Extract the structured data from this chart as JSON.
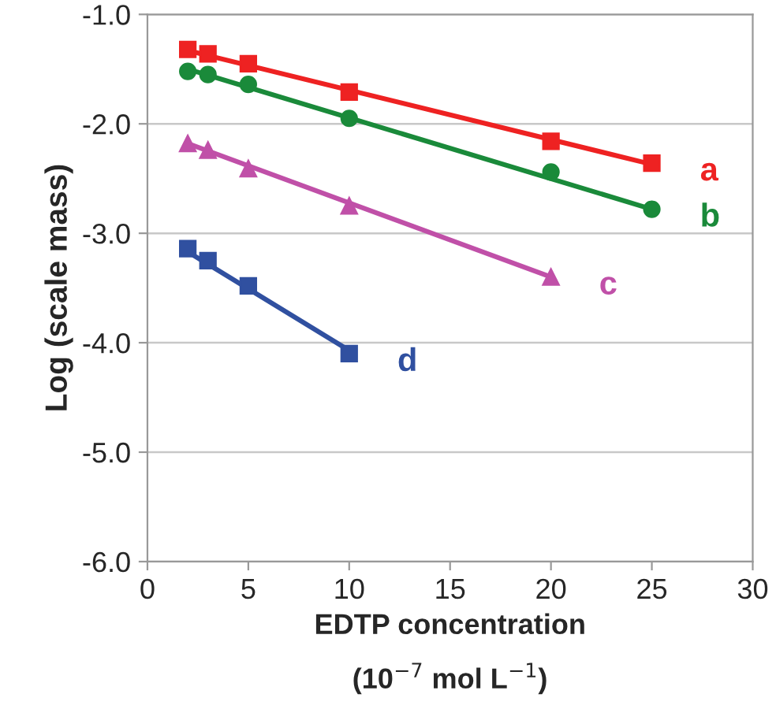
{
  "chart_data": {
    "type": "scatter",
    "xlabel": "EDTP concentration\n(10$^{−7}$ mol L$^{−1}$)",
    "ylabel": "Log (scale mass)",
    "xlim": [
      0,
      30
    ],
    "xticks": [
      0,
      5,
      10,
      15,
      20,
      25,
      30
    ],
    "ylim": [
      -6,
      -1
    ],
    "yticks": [
      {
        "value": -6,
        "label": "-6.0"
      },
      {
        "value": -5,
        "label": "-5.0"
      },
      {
        "value": -4,
        "label": "-4.0"
      },
      {
        "value": -3,
        "label": "-3.0"
      },
      {
        "value": -2,
        "label": "-2.0"
      },
      {
        "value": -1,
        "label": "-1.0"
      }
    ],
    "grid": "y",
    "legend": false,
    "series": [
      {
        "name": "a",
        "color": "#ee2222",
        "marker": "square",
        "x": [
          2,
          3,
          5,
          10,
          20,
          25
        ],
        "values": [
          -1.32,
          -1.36,
          -1.45,
          -1.71,
          -2.16,
          -2.36
        ]
      },
      {
        "name": "b",
        "color": "#1a8a3a",
        "marker": "circle",
        "x": [
          2,
          3,
          5,
          10,
          20,
          25
        ],
        "values": [
          -1.52,
          -1.55,
          -1.64,
          -1.95,
          -2.44,
          -2.78
        ]
      },
      {
        "name": "c",
        "color": "#c050a8",
        "marker": "triangle",
        "x": [
          2,
          3,
          5,
          10,
          20
        ],
        "values": [
          -2.18,
          -2.24,
          -2.41,
          -2.75,
          -3.4
        ]
      },
      {
        "name": "d",
        "color": "#3050a0",
        "marker": "square",
        "x": [
          2,
          3,
          5,
          10
        ],
        "values": [
          -3.14,
          -3.25,
          -3.48,
          -4.1
        ]
      },
      {
        "type": "line",
        "color": "#ee2222",
        "marker": "none",
        "x": [
          2,
          25
        ],
        "values": [
          -1.33,
          -2.37
        ]
      },
      {
        "type": "line",
        "color": "#1a8a3a",
        "marker": "none",
        "x": [
          2,
          25
        ],
        "values": [
          -1.5,
          -2.78
        ]
      },
      {
        "type": "line",
        "color": "#c050a8",
        "marker": "none",
        "x": [
          2,
          20
        ],
        "values": [
          -2.18,
          -3.4
        ]
      },
      {
        "type": "line",
        "color": "#3050a0",
        "marker": "none",
        "x": [
          2,
          10
        ],
        "values": [
          -3.17,
          -4.07
        ]
      }
    ]
  }
}
